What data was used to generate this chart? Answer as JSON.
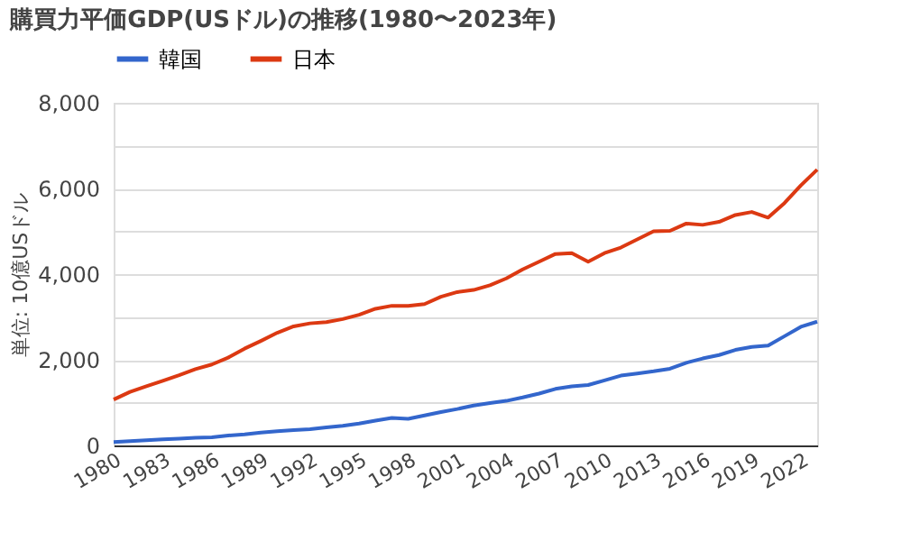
{
  "chart_data": {
    "type": "line",
    "title": "購買力平価GDP(USドル)の推移(1980〜2023年)",
    "ylabel": "単位: 10億USドル",
    "x": [
      1980,
      1981,
      1982,
      1983,
      1984,
      1985,
      1986,
      1987,
      1988,
      1989,
      1990,
      1991,
      1992,
      1993,
      1994,
      1995,
      1996,
      1997,
      1998,
      1999,
      2000,
      2001,
      2002,
      2003,
      2004,
      2005,
      2006,
      2007,
      2008,
      2009,
      2010,
      2011,
      2012,
      2013,
      2014,
      2015,
      2016,
      2017,
      2018,
      2019,
      2020,
      2021,
      2022,
      2023
    ],
    "series": [
      {
        "name": "韓国",
        "color": "#3366cc",
        "values": [
          80,
          100,
          120,
          140,
          160,
          180,
          190,
          230,
          260,
          300,
          330,
          360,
          380,
          420,
          460,
          510,
          580,
          640,
          620,
          700,
          780,
          850,
          930,
          990,
          1040,
          1120,
          1210,
          1320,
          1380,
          1410,
          1520,
          1630,
          1680,
          1730,
          1790,
          1930,
          2030,
          2110,
          2230,
          2300,
          2330,
          2550,
          2770,
          2890
        ]
      },
      {
        "name": "日本",
        "color": "#dc3912",
        "values": [
          1070,
          1250,
          1380,
          1510,
          1640,
          1780,
          1890,
          2050,
          2260,
          2440,
          2630,
          2780,
          2850,
          2880,
          2950,
          3050,
          3190,
          3260,
          3260,
          3300,
          3470,
          3580,
          3630,
          3740,
          3900,
          4110,
          4290,
          4470,
          4490,
          4290,
          4490,
          4620,
          4810,
          5000,
          5010,
          5180,
          5150,
          5220,
          5380,
          5450,
          5320,
          5660,
          6070,
          6440
        ]
      }
    ],
    "xlim": [
      1980,
      2023
    ],
    "xticks": [
      1980,
      1983,
      1986,
      1989,
      1992,
      1995,
      1998,
      2001,
      2004,
      2007,
      2010,
      2013,
      2016,
      2019,
      2022
    ],
    "ylim": [
      0,
      8000
    ],
    "yticks": [
      {
        "value": 0,
        "label": "0"
      },
      {
        "value": 1000,
        "label": null
      },
      {
        "value": 2000,
        "label": "2,000"
      },
      {
        "value": 3000,
        "label": null
      },
      {
        "value": 4000,
        "label": "4,000"
      },
      {
        "value": 5000,
        "label": null
      },
      {
        "value": 6000,
        "label": "6,000"
      },
      {
        "value": 7000,
        "label": null
      },
      {
        "value": 8000,
        "label": "8,000"
      }
    ],
    "grid": "y",
    "legend": "top left",
    "marker": "none",
    "line_style": "solid"
  }
}
